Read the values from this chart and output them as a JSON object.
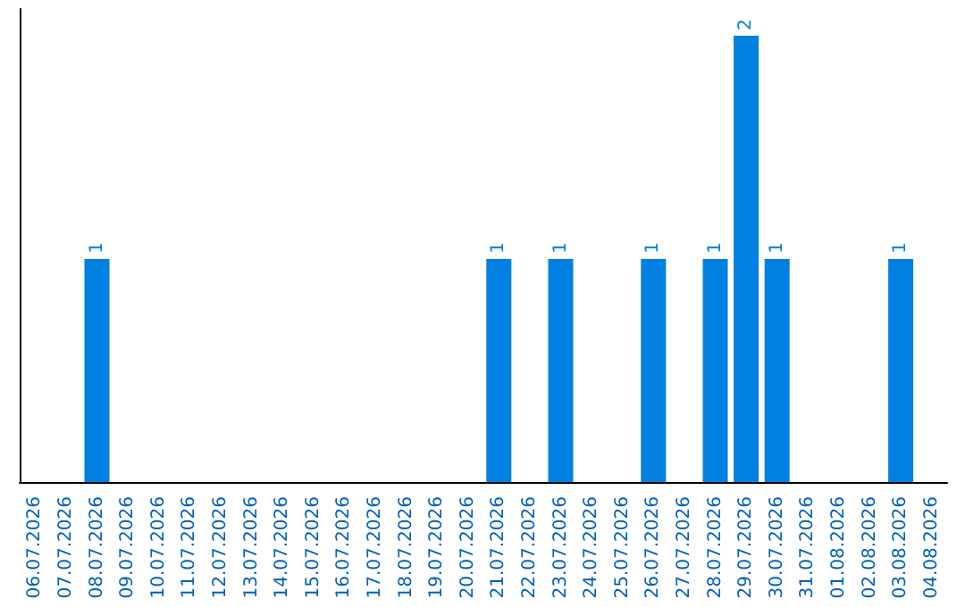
{
  "chart_data": {
    "type": "bar",
    "categories": [
      "06.07.2026",
      "07.07.2026",
      "08.07.2026",
      "09.07.2026",
      "10.07.2026",
      "11.07.2026",
      "12.07.2026",
      "13.07.2026",
      "14.07.2026",
      "15.07.2026",
      "16.07.2026",
      "17.07.2026",
      "18.07.2026",
      "19.07.2026",
      "20.07.2026",
      "21.07.2026",
      "22.07.2026",
      "23.07.2026",
      "24.07.2026",
      "25.07.2026",
      "26.07.2026",
      "27.07.2026",
      "28.07.2026",
      "29.07.2026",
      "30.07.2026",
      "31.07.2026",
      "01.08.2026",
      "02.08.2026",
      "03.08.2026",
      "04.08.2026"
    ],
    "values": [
      0,
      0,
      1,
      0,
      0,
      0,
      0,
      0,
      0,
      0,
      0,
      0,
      0,
      0,
      0,
      1,
      0,
      1,
      0,
      0,
      1,
      0,
      1,
      2,
      1,
      0,
      0,
      0,
      1,
      0
    ],
    "value_labels": [
      null,
      null,
      "1",
      null,
      null,
      null,
      null,
      null,
      null,
      null,
      null,
      null,
      null,
      null,
      null,
      "1",
      null,
      "1",
      null,
      null,
      "1",
      null,
      "1",
      "2",
      "1",
      null,
      null,
      null,
      "1",
      null
    ],
    "color": "#0080e0",
    "tick_labels": "x"
  }
}
